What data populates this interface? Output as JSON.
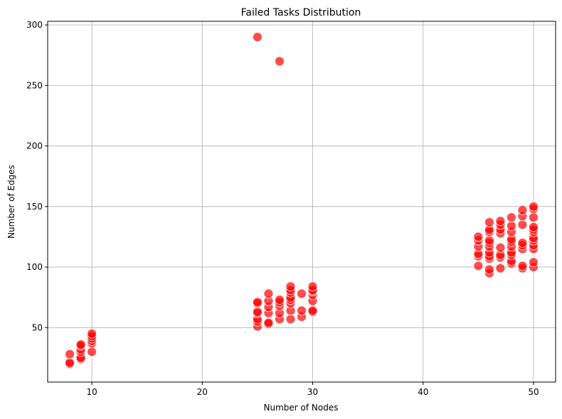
{
  "chart_data": {
    "type": "scatter",
    "title": "Failed Tasks Distribution",
    "xlabel": "Number of Nodes",
    "ylabel": "Number of Edges",
    "xlim": [
      6,
      52
    ],
    "ylim": [
      5,
      303
    ],
    "xticks": [
      10,
      20,
      30,
      40,
      50
    ],
    "yticks": [
      50,
      100,
      150,
      200,
      250,
      300
    ],
    "grid": true,
    "point_color": "#ff0000",
    "point_edge_color": "#ffffff",
    "point_alpha": 0.7,
    "points": [
      {
        "x": 8,
        "y": 20
      },
      {
        "x": 8,
        "y": 21
      },
      {
        "x": 8,
        "y": 28
      },
      {
        "x": 9,
        "y": 24
      },
      {
        "x": 9,
        "y": 25
      },
      {
        "x": 9,
        "y": 30
      },
      {
        "x": 9,
        "y": 32
      },
      {
        "x": 9,
        "y": 35
      },
      {
        "x": 9,
        "y": 36
      },
      {
        "x": 10,
        "y": 30
      },
      {
        "x": 10,
        "y": 37
      },
      {
        "x": 10,
        "y": 39
      },
      {
        "x": 10,
        "y": 41
      },
      {
        "x": 10,
        "y": 43
      },
      {
        "x": 10,
        "y": 45
      },
      {
        "x": 25,
        "y": 51
      },
      {
        "x": 25,
        "y": 55
      },
      {
        "x": 25,
        "y": 57
      },
      {
        "x": 25,
        "y": 62
      },
      {
        "x": 25,
        "y": 63
      },
      {
        "x": 25,
        "y": 70
      },
      {
        "x": 25,
        "y": 71
      },
      {
        "x": 26,
        "y": 53
      },
      {
        "x": 26,
        "y": 54
      },
      {
        "x": 26,
        "y": 62
      },
      {
        "x": 26,
        "y": 67
      },
      {
        "x": 26,
        "y": 72
      },
      {
        "x": 26,
        "y": 78
      },
      {
        "x": 27,
        "y": 57
      },
      {
        "x": 27,
        "y": 62
      },
      {
        "x": 27,
        "y": 68
      },
      {
        "x": 27,
        "y": 71
      },
      {
        "x": 27,
        "y": 73
      },
      {
        "x": 28,
        "y": 57
      },
      {
        "x": 28,
        "y": 64
      },
      {
        "x": 28,
        "y": 70
      },
      {
        "x": 28,
        "y": 73
      },
      {
        "x": 28,
        "y": 75
      },
      {
        "x": 28,
        "y": 79
      },
      {
        "x": 28,
        "y": 81
      },
      {
        "x": 28,
        "y": 84
      },
      {
        "x": 29,
        "y": 59
      },
      {
        "x": 29,
        "y": 64
      },
      {
        "x": 29,
        "y": 78
      },
      {
        "x": 30,
        "y": 63
      },
      {
        "x": 30,
        "y": 64
      },
      {
        "x": 30,
        "y": 72
      },
      {
        "x": 30,
        "y": 77
      },
      {
        "x": 30,
        "y": 80
      },
      {
        "x": 30,
        "y": 81
      },
      {
        "x": 30,
        "y": 84
      },
      {
        "x": 25,
        "y": 290
      },
      {
        "x": 27,
        "y": 270
      },
      {
        "x": 45,
        "y": 101
      },
      {
        "x": 45,
        "y": 109
      },
      {
        "x": 45,
        "y": 111
      },
      {
        "x": 45,
        "y": 117
      },
      {
        "x": 45,
        "y": 122
      },
      {
        "x": 45,
        "y": 125
      },
      {
        "x": 46,
        "y": 95
      },
      {
        "x": 46,
        "y": 98
      },
      {
        "x": 46,
        "y": 107
      },
      {
        "x": 46,
        "y": 109
      },
      {
        "x": 46,
        "y": 112
      },
      {
        "x": 46,
        "y": 117
      },
      {
        "x": 46,
        "y": 120
      },
      {
        "x": 46,
        "y": 122
      },
      {
        "x": 46,
        "y": 129
      },
      {
        "x": 46,
        "y": 131
      },
      {
        "x": 46,
        "y": 137
      },
      {
        "x": 47,
        "y": 99
      },
      {
        "x": 47,
        "y": 108
      },
      {
        "x": 47,
        "y": 110
      },
      {
        "x": 47,
        "y": 116
      },
      {
        "x": 47,
        "y": 128
      },
      {
        "x": 47,
        "y": 131
      },
      {
        "x": 47,
        "y": 135
      },
      {
        "x": 47,
        "y": 138
      },
      {
        "x": 48,
        "y": 103
      },
      {
        "x": 48,
        "y": 105
      },
      {
        "x": 48,
        "y": 110
      },
      {
        "x": 48,
        "y": 112
      },
      {
        "x": 48,
        "y": 117
      },
      {
        "x": 48,
        "y": 121
      },
      {
        "x": 48,
        "y": 123
      },
      {
        "x": 48,
        "y": 129
      },
      {
        "x": 48,
        "y": 134
      },
      {
        "x": 48,
        "y": 141
      },
      {
        "x": 49,
        "y": 99
      },
      {
        "x": 49,
        "y": 101
      },
      {
        "x": 49,
        "y": 115
      },
      {
        "x": 49,
        "y": 118
      },
      {
        "x": 49,
        "y": 120
      },
      {
        "x": 49,
        "y": 135
      },
      {
        "x": 49,
        "y": 142
      },
      {
        "x": 49,
        "y": 147
      },
      {
        "x": 50,
        "y": 100
      },
      {
        "x": 50,
        "y": 104
      },
      {
        "x": 50,
        "y": 115
      },
      {
        "x": 50,
        "y": 118
      },
      {
        "x": 50,
        "y": 122
      },
      {
        "x": 50,
        "y": 124
      },
      {
        "x": 50,
        "y": 129
      },
      {
        "x": 50,
        "y": 131
      },
      {
        "x": 50,
        "y": 133
      },
      {
        "x": 50,
        "y": 141
      },
      {
        "x": 50,
        "y": 148
      },
      {
        "x": 50,
        "y": 150
      }
    ]
  }
}
